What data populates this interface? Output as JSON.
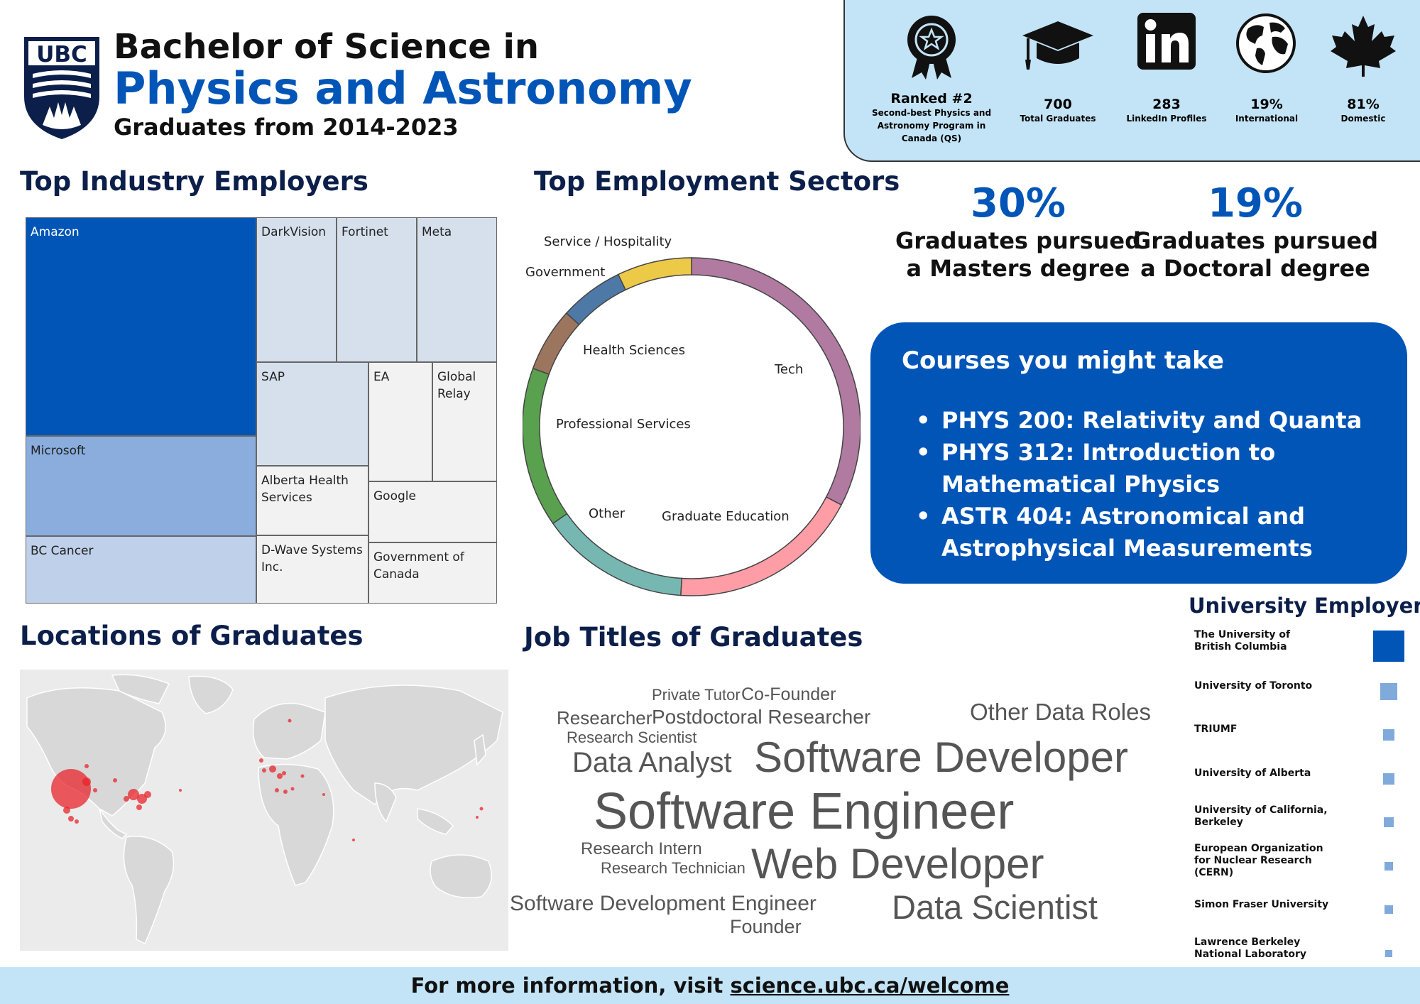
{
  "header": {
    "logo_text": "UBC",
    "title_line1": "Bachelor of Science in",
    "title_line2": "Physics and Astronomy",
    "subtitle": "Graduates from 2014-2023"
  },
  "stats": [
    {
      "icon": "award-ribbon-icon",
      "value": "Ranked #2",
      "label": "Second-best Physics and Astronomy Program in Canada (QS)"
    },
    {
      "icon": "graduation-cap-icon",
      "value": "700",
      "label": "Total Graduates"
    },
    {
      "icon": "linkedin-icon",
      "value": "283",
      "label": "LinkedIn Profiles"
    },
    {
      "icon": "globe-icon",
      "value": "19%",
      "label": "International"
    },
    {
      "icon": "maple-leaf-icon",
      "value": "81%",
      "label": "Domestic"
    }
  ],
  "sections": {
    "employers": "Top Industry Employers",
    "sectors": "Top Employment Sectors",
    "locations": "Locations of Graduates",
    "job_titles": "Job Titles of Graduates"
  },
  "treemap": [
    {
      "name": "Amazon",
      "color": "#0055b7"
    },
    {
      "name": "DarkVision",
      "color": "#d6e0ec"
    },
    {
      "name": "Fortinet",
      "color": "#d6e0ec"
    },
    {
      "name": "Meta",
      "color": "#d6e0ec"
    },
    {
      "name": "Microsoft",
      "color": "#8aadde"
    },
    {
      "name": "SAP",
      "color": "#d6e0ec"
    },
    {
      "name": "EA",
      "color": "#f2f2f2"
    },
    {
      "name": "Global Relay",
      "color": "#f2f2f2"
    },
    {
      "name": "Alberta Health Services",
      "color": "#f2f2f2"
    },
    {
      "name": "Google",
      "color": "#f2f2f2"
    },
    {
      "name": "BC Cancer",
      "color": "#bfd0ea"
    },
    {
      "name": "D-Wave Systems Inc.",
      "color": "#f2f2f2"
    },
    {
      "name": "Government of Canada",
      "color": "#f2f2f2"
    }
  ],
  "chart_data": {
    "type": "pie",
    "categories": [
      "Tech",
      "Graduate Education",
      "Other",
      "Professional Services",
      "Health Sciences",
      "Government",
      "Service / Hospitality"
    ],
    "values": [
      32,
      18,
      14,
      15,
      6,
      6,
      7
    ],
    "colors": [
      "#b07aa1",
      "#ff9da7",
      "#76b7b2",
      "#59a14f",
      "#9c755f",
      "#4e79a7",
      "#edc948"
    ]
  },
  "degrees": [
    {
      "value": "30%",
      "label": "Graduates pursued a Masters degree"
    },
    {
      "value": "19%",
      "label": "Graduates pursued a Doctoral degree"
    }
  ],
  "courses": {
    "title": "Courses you might take",
    "items": [
      "PHYS 200: Relativity and Quanta",
      "PHYS 312: Introduction to Mathematical Physics",
      "ASTR 404: Astronomical and Astrophysical Measurements"
    ]
  },
  "word_cloud": [
    {
      "text": "Private Tutor",
      "size": 22
    },
    {
      "text": "Co-Founder",
      "size": 25
    },
    {
      "text": "Researcher",
      "size": 26
    },
    {
      "text": "Postdoctoral Researcher",
      "size": 28
    },
    {
      "text": "Research Scientist",
      "size": 22
    },
    {
      "text": "Other Data Roles",
      "size": 33
    },
    {
      "text": "Data Analyst",
      "size": 40
    },
    {
      "text": "Software Developer",
      "size": 60
    },
    {
      "text": "Software Engineer",
      "size": 72
    },
    {
      "text": "Research Intern",
      "size": 24
    },
    {
      "text": "Research Technician",
      "size": 22
    },
    {
      "text": "Web Developer",
      "size": 60
    },
    {
      "text": "Software Development Engineer",
      "size": 30
    },
    {
      "text": "Data Scientist",
      "size": 47
    },
    {
      "text": "Founder",
      "size": 27
    }
  ],
  "university_employers": {
    "title": "University Employers",
    "items": [
      {
        "name": "The University of British Columbia",
        "value": 100
      },
      {
        "name": "University of Toronto",
        "value": 28
      },
      {
        "name": "TRIUMF",
        "value": 14
      },
      {
        "name": "University of Alberta",
        "value": 13
      },
      {
        "name": "University of California, Berkeley",
        "value": 11
      },
      {
        "name": "European Organization for Nuclear Research (CERN)",
        "value": 8
      },
      {
        "name": "Simon Fraser University",
        "value": 8
      },
      {
        "name": "Lawrence Berkeley National Laboratory",
        "value": 6
      }
    ]
  },
  "footer": {
    "prefix": "For more information, visit ",
    "link": "science.ubc.ca/welcome"
  }
}
